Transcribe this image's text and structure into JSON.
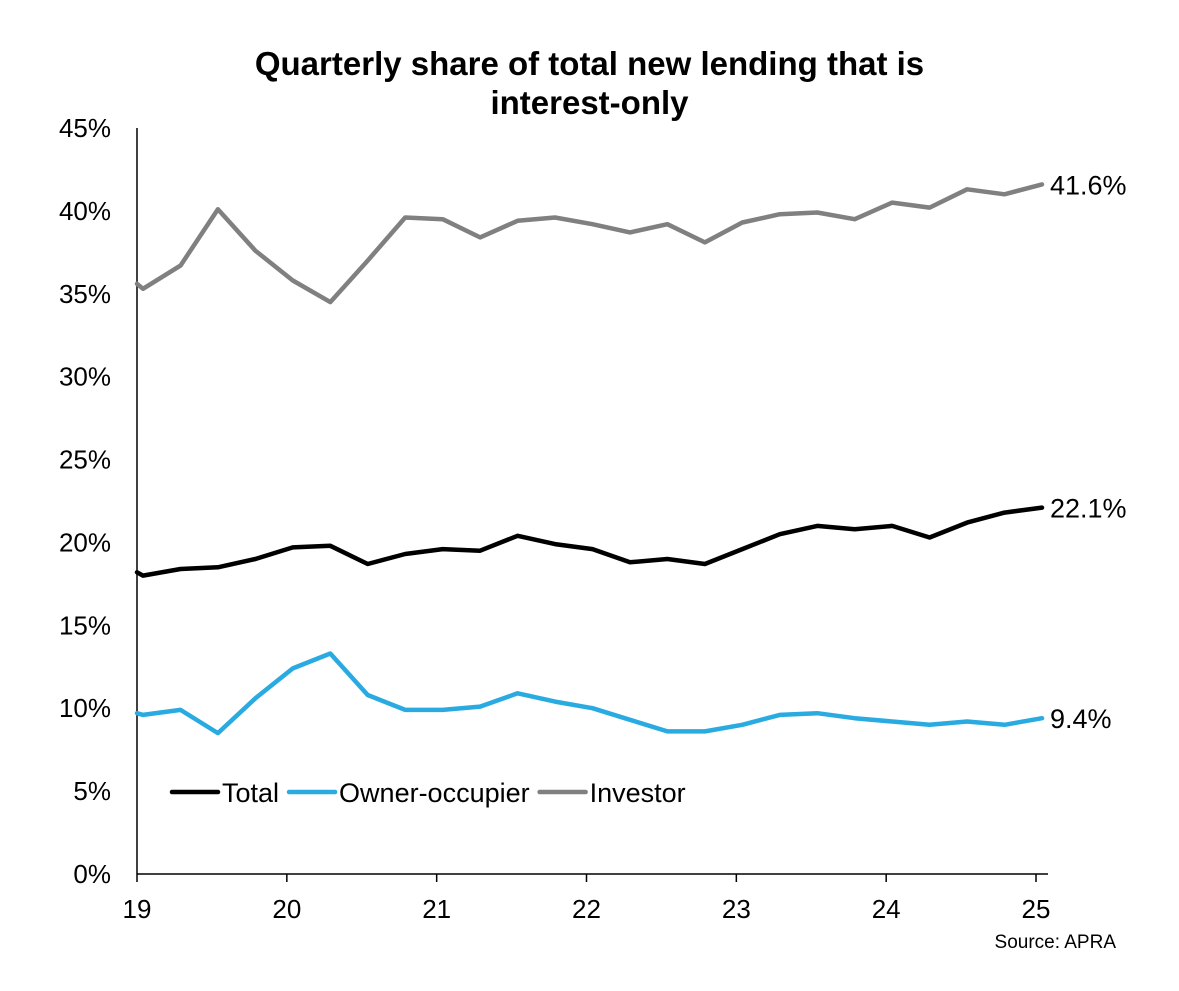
{
  "chart_data": {
    "type": "line",
    "title_lines": [
      "Quarterly share of total new lending that is",
      "interest-only"
    ],
    "xlabel": "",
    "ylabel": "",
    "ylim": [
      0,
      45
    ],
    "yticks": [
      0,
      5,
      10,
      15,
      20,
      25,
      30,
      35,
      40,
      45
    ],
    "ytick_labels": [
      "0%",
      "5%",
      "10%",
      "15%",
      "20%",
      "25%",
      "30%",
      "35%",
      "40%",
      "45%"
    ],
    "xlim": [
      2019,
      2025.08
    ],
    "xticks": [
      2019,
      2020,
      2021,
      2022,
      2023,
      2024,
      2025
    ],
    "xtick_labels": [
      "19",
      "20",
      "21",
      "22",
      "23",
      "24",
      "25"
    ],
    "x": [
      2019.0,
      2019.04,
      2019.29,
      2019.54,
      2019.79,
      2020.04,
      2020.29,
      2020.54,
      2020.79,
      2021.04,
      2021.29,
      2021.54,
      2021.79,
      2022.04,
      2022.29,
      2022.54,
      2022.79,
      2023.04,
      2023.29,
      2023.54,
      2023.79,
      2024.04,
      2024.29,
      2024.54,
      2024.79,
      2025.04
    ],
    "series": [
      {
        "name": "Total",
        "color": "#000000",
        "values": [
          18.2,
          18.0,
          18.4,
          18.5,
          19.0,
          19.7,
          19.8,
          18.7,
          19.3,
          19.6,
          19.5,
          20.4,
          19.9,
          19.6,
          18.8,
          19.0,
          18.7,
          19.6,
          20.5,
          21.0,
          20.8,
          21.0,
          20.3,
          21.2,
          21.8,
          22.1
        ],
        "end_label": "22.1%"
      },
      {
        "name": "Owner-occupier",
        "color": "#29abe2",
        "values": [
          9.7,
          9.6,
          9.9,
          8.5,
          10.6,
          12.4,
          13.3,
          10.8,
          9.9,
          9.9,
          10.1,
          10.9,
          10.4,
          10.0,
          9.3,
          8.6,
          8.6,
          9.0,
          9.6,
          9.7,
          9.4,
          9.2,
          9.0,
          9.2,
          9.0,
          9.4
        ],
        "end_label": "9.4%"
      },
      {
        "name": "Investor",
        "color": "#808080",
        "values": [
          35.6,
          35.3,
          36.7,
          40.1,
          37.6,
          35.8,
          34.5,
          37.0,
          39.6,
          39.5,
          38.4,
          39.4,
          39.6,
          39.2,
          38.7,
          39.2,
          38.1,
          39.3,
          39.8,
          39.9,
          39.5,
          40.5,
          40.2,
          41.3,
          41.0,
          41.6
        ],
        "end_label": "41.6%"
      }
    ],
    "legend": [
      "Total",
      "Owner-occupier",
      "Investor"
    ],
    "legend_position": "bottom-left",
    "grid": false
  },
  "source": "Source: APRA"
}
